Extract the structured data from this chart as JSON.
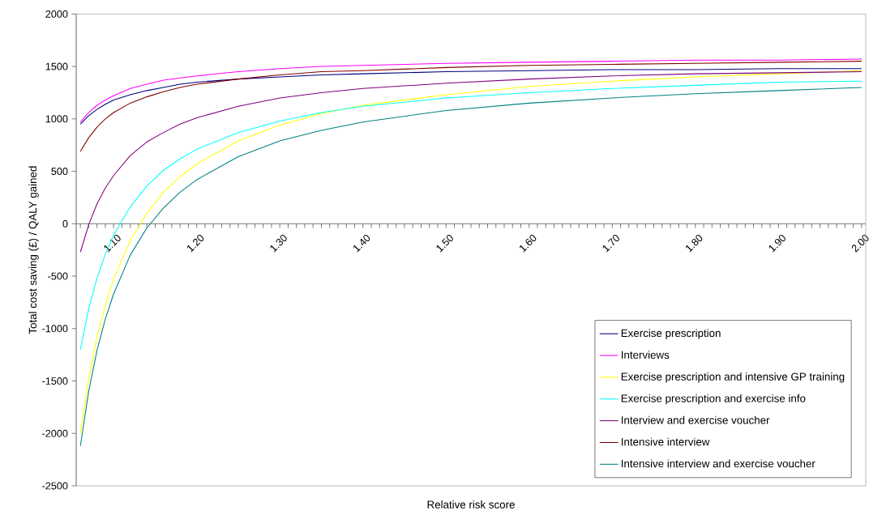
{
  "chart_data": {
    "type": "line",
    "xlabel": "Relative risk score",
    "ylabel": "Total cost saving (£) / QALY gained",
    "x": [
      1.06,
      1.07,
      1.08,
      1.09,
      1.1,
      1.12,
      1.14,
      1.16,
      1.18,
      1.2,
      1.25,
      1.3,
      1.35,
      1.4,
      1.5,
      1.6,
      1.7,
      1.8,
      1.9,
      2.0
    ],
    "series": [
      {
        "name": "Exercise prescription",
        "color": "#000080",
        "values": [
          950,
          1030,
          1090,
          1140,
          1180,
          1230,
          1270,
          1300,
          1330,
          1350,
          1380,
          1400,
          1420,
          1430,
          1450,
          1460,
          1470,
          1470,
          1480,
          1480
        ]
      },
      {
        "name": "Interviews",
        "color": "#ff00ff",
        "values": [
          970,
          1060,
          1130,
          1180,
          1220,
          1290,
          1330,
          1370,
          1390,
          1410,
          1450,
          1480,
          1500,
          1510,
          1530,
          1540,
          1550,
          1560,
          1560,
          1570
        ]
      },
      {
        "name": "Exercise prescription and intensive GP training",
        "color": "#ffff00",
        "values": [
          -2000,
          -1480,
          -1080,
          -780,
          -530,
          -160,
          100,
          300,
          450,
          570,
          790,
          940,
          1050,
          1130,
          1230,
          1310,
          1360,
          1400,
          1430,
          1460
        ]
      },
      {
        "name": "Exercise prescription and exercise info",
        "color": "#00ffff",
        "values": [
          -1200,
          -810,
          -520,
          -290,
          -110,
          160,
          360,
          510,
          620,
          710,
          870,
          980,
          1060,
          1120,
          1200,
          1250,
          1290,
          1320,
          1350,
          1360
        ]
      },
      {
        "name": "Interview and exercise voucher",
        "color": "#800080",
        "values": [
          -270,
          -10,
          190,
          340,
          460,
          650,
          780,
          870,
          950,
          1010,
          1120,
          1200,
          1250,
          1290,
          1340,
          1380,
          1410,
          1430,
          1440,
          1450
        ]
      },
      {
        "name": "Intensive interview",
        "color": "#800000",
        "values": [
          690,
          820,
          920,
          1000,
          1060,
          1150,
          1210,
          1260,
          1300,
          1330,
          1380,
          1420,
          1450,
          1460,
          1490,
          1510,
          1520,
          1530,
          1540,
          1550
        ]
      },
      {
        "name": "Intensive interview and exercise voucher",
        "color": "#008080",
        "values": [
          -2120,
          -1600,
          -1210,
          -910,
          -670,
          -300,
          -40,
          150,
          300,
          420,
          640,
          790,
          890,
          970,
          1080,
          1150,
          1200,
          1240,
          1270,
          1300
        ]
      }
    ],
    "xlim": [
      1.055,
      2.005
    ],
    "xticks": [
      {
        "value": 1.06,
        "label": null
      },
      {
        "value": 1.07,
        "label": null
      },
      {
        "value": 1.08,
        "label": null
      },
      {
        "value": 1.09,
        "label": null
      },
      {
        "value": 1.1,
        "label": "1.10"
      },
      {
        "value": 1.11,
        "label": null
      },
      {
        "value": 1.12,
        "label": null
      },
      {
        "value": 1.13,
        "label": null
      },
      {
        "value": 1.14,
        "label": null
      },
      {
        "value": 1.15,
        "label": null
      },
      {
        "value": 1.16,
        "label": null
      },
      {
        "value": 1.17,
        "label": null
      },
      {
        "value": 1.18,
        "label": null
      },
      {
        "value": 1.19,
        "label": null
      },
      {
        "value": 1.2,
        "label": "1.20"
      },
      {
        "value": 1.21,
        "label": null
      },
      {
        "value": 1.22,
        "label": null
      },
      {
        "value": 1.23,
        "label": null
      },
      {
        "value": 1.24,
        "label": null
      },
      {
        "value": 1.25,
        "label": null
      },
      {
        "value": 1.26,
        "label": null
      },
      {
        "value": 1.27,
        "label": null
      },
      {
        "value": 1.28,
        "label": null
      },
      {
        "value": 1.29,
        "label": null
      },
      {
        "value": 1.3,
        "label": "1.30"
      },
      {
        "value": 1.31,
        "label": null
      },
      {
        "value": 1.32,
        "label": null
      },
      {
        "value": 1.33,
        "label": null
      },
      {
        "value": 1.34,
        "label": null
      },
      {
        "value": 1.35,
        "label": null
      },
      {
        "value": 1.36,
        "label": null
      },
      {
        "value": 1.37,
        "label": null
      },
      {
        "value": 1.38,
        "label": null
      },
      {
        "value": 1.39,
        "label": null
      },
      {
        "value": 1.4,
        "label": "1.40"
      },
      {
        "value": 1.41,
        "label": null
      },
      {
        "value": 1.42,
        "label": null
      },
      {
        "value": 1.43,
        "label": null
      },
      {
        "value": 1.44,
        "label": null
      },
      {
        "value": 1.45,
        "label": null
      },
      {
        "value": 1.46,
        "label": null
      },
      {
        "value": 1.47,
        "label": null
      },
      {
        "value": 1.48,
        "label": null
      },
      {
        "value": 1.49,
        "label": null
      },
      {
        "value": 1.5,
        "label": "1.50"
      },
      {
        "value": 1.51,
        "label": null
      },
      {
        "value": 1.52,
        "label": null
      },
      {
        "value": 1.53,
        "label": null
      },
      {
        "value": 1.54,
        "label": null
      },
      {
        "value": 1.55,
        "label": null
      },
      {
        "value": 1.56,
        "label": null
      },
      {
        "value": 1.57,
        "label": null
      },
      {
        "value": 1.58,
        "label": null
      },
      {
        "value": 1.59,
        "label": null
      },
      {
        "value": 1.6,
        "label": "1.60"
      },
      {
        "value": 1.61,
        "label": null
      },
      {
        "value": 1.62,
        "label": null
      },
      {
        "value": 1.63,
        "label": null
      },
      {
        "value": 1.64,
        "label": null
      },
      {
        "value": 1.65,
        "label": null
      },
      {
        "value": 1.66,
        "label": null
      },
      {
        "value": 1.67,
        "label": null
      },
      {
        "value": 1.68,
        "label": null
      },
      {
        "value": 1.69,
        "label": null
      },
      {
        "value": 1.7,
        "label": "1.70"
      },
      {
        "value": 1.71,
        "label": null
      },
      {
        "value": 1.72,
        "label": null
      },
      {
        "value": 1.73,
        "label": null
      },
      {
        "value": 1.74,
        "label": null
      },
      {
        "value": 1.75,
        "label": null
      },
      {
        "value": 1.76,
        "label": null
      },
      {
        "value": 1.77,
        "label": null
      },
      {
        "value": 1.78,
        "label": null
      },
      {
        "value": 1.79,
        "label": null
      },
      {
        "value": 1.8,
        "label": "1.80"
      },
      {
        "value": 1.81,
        "label": null
      },
      {
        "value": 1.82,
        "label": null
      },
      {
        "value": 1.83,
        "label": null
      },
      {
        "value": 1.84,
        "label": null
      },
      {
        "value": 1.85,
        "label": null
      },
      {
        "value": 1.86,
        "label": null
      },
      {
        "value": 1.87,
        "label": null
      },
      {
        "value": 1.88,
        "label": null
      },
      {
        "value": 1.89,
        "label": null
      },
      {
        "value": 1.9,
        "label": "1.90"
      },
      {
        "value": 1.91,
        "label": null
      },
      {
        "value": 1.92,
        "label": null
      },
      {
        "value": 1.93,
        "label": null
      },
      {
        "value": 1.94,
        "label": null
      },
      {
        "value": 1.95,
        "label": null
      },
      {
        "value": 1.96,
        "label": null
      },
      {
        "value": 1.97,
        "label": null
      },
      {
        "value": 1.98,
        "label": null
      },
      {
        "value": 1.99,
        "label": null
      },
      {
        "value": 2.0,
        "label": "2.00"
      }
    ],
    "ylim": [
      -2500,
      2000
    ],
    "yticks": [
      -2500,
      -2000,
      -1500,
      -1000,
      -500,
      0,
      500,
      1000,
      1500,
      2000
    ],
    "legend": "bottom right",
    "marker": "none",
    "line_style": "solid",
    "grid": false
  }
}
